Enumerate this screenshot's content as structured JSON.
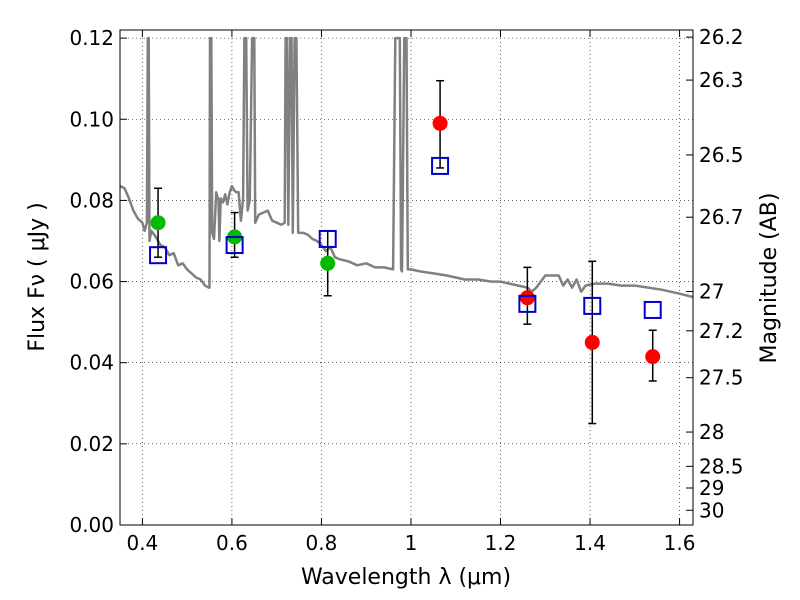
{
  "chart_data": {
    "type": "scatter",
    "xlabel": "Wavelength  λ (μm)",
    "ylabel": "Flux  Fν  ( μJy )",
    "y2label": "Magnitude (AB)",
    "xlim": [
      0.35,
      1.63
    ],
    "ylim": [
      0.0,
      0.122
    ],
    "grid": true,
    "x_ticks": [
      0.4,
      0.6,
      0.8,
      1.0,
      1.2,
      1.4,
      1.6
    ],
    "x_tick_labels": [
      "0.4",
      "0.6",
      "0.8",
      "1",
      "1.2",
      "1.4",
      "1.6"
    ],
    "y_ticks": [
      0.0,
      0.02,
      0.04,
      0.06,
      0.08,
      0.1,
      0.12
    ],
    "y_tick_labels": [
      "0.00",
      "0.02",
      "0.04",
      "0.06",
      "0.08",
      "0.10",
      "0.12"
    ],
    "mag_ticks": [
      26.2,
      26.3,
      26.5,
      26.7,
      27,
      27.2,
      27.5,
      28,
      28.5,
      29,
      30
    ],
    "mag_tick_labels": [
      "26.2",
      "26.3",
      "26.5",
      "26.7",
      "27",
      "27.2",
      "27.5",
      "28",
      "28.5",
      "29",
      "30"
    ],
    "colors": {
      "optical": "#00bb00",
      "infrared": "#ff0000",
      "model": "#0000cc",
      "sed": "#808080",
      "errorbar": "#000000"
    },
    "series": [
      {
        "marker": "circle",
        "color": "#00bb00",
        "points": [
          {
            "x": 0.435,
            "y": 0.0745,
            "ylo": 0.066,
            "yhi": 0.083
          },
          {
            "x": 0.606,
            "y": 0.071,
            "ylo": 0.066,
            "yhi": 0.077
          },
          {
            "x": 0.814,
            "y": 0.0645,
            "ylo": 0.0565,
            "yhi": 0.0725
          }
        ]
      },
      {
        "marker": "circle",
        "color": "#ff0000",
        "points": [
          {
            "x": 1.065,
            "y": 0.099,
            "ylo": 0.088,
            "yhi": 0.1095
          },
          {
            "x": 1.26,
            "y": 0.056,
            "ylo": 0.0495,
            "yhi": 0.0635
          },
          {
            "x": 1.405,
            "y": 0.045,
            "ylo": 0.025,
            "yhi": 0.065
          },
          {
            "x": 1.54,
            "y": 0.0415,
            "ylo": 0.0355,
            "yhi": 0.048
          }
        ]
      },
      {
        "marker": "square",
        "color": "#0000cc",
        "points": [
          {
            "x": 0.435,
            "y": 0.0665
          },
          {
            "x": 0.606,
            "y": 0.069
          },
          {
            "x": 0.814,
            "y": 0.0705
          },
          {
            "x": 1.065,
            "y": 0.0885
          },
          {
            "x": 1.26,
            "y": 0.0545
          },
          {
            "x": 1.405,
            "y": 0.054
          },
          {
            "x": 1.54,
            "y": 0.053
          }
        ]
      }
    ],
    "sed_line": {
      "color": "#808080",
      "points": [
        [
          0.35,
          0.0835
        ],
        [
          0.36,
          0.083
        ],
        [
          0.37,
          0.0805
        ],
        [
          0.38,
          0.0775
        ],
        [
          0.39,
          0.0755
        ],
        [
          0.4,
          0.0745
        ],
        [
          0.405,
          0.0725
        ],
        [
          0.41,
          0.0745
        ],
        [
          0.412,
          0.12
        ],
        [
          0.414,
          0.12
        ],
        [
          0.416,
          0.07
        ],
        [
          0.42,
          0.0725
        ],
        [
          0.43,
          0.071
        ],
        [
          0.44,
          0.069
        ],
        [
          0.45,
          0.0685
        ],
        [
          0.46,
          0.0665
        ],
        [
          0.47,
          0.067
        ],
        [
          0.48,
          0.064
        ],
        [
          0.49,
          0.0645
        ],
        [
          0.5,
          0.063
        ],
        [
          0.51,
          0.062
        ],
        [
          0.52,
          0.061
        ],
        [
          0.53,
          0.0605
        ],
        [
          0.54,
          0.059
        ],
        [
          0.548,
          0.0585
        ],
        [
          0.55,
          0.0585
        ],
        [
          0.551,
          0.12
        ],
        [
          0.554,
          0.12
        ],
        [
          0.556,
          0.072
        ],
        [
          0.56,
          0.0705
        ],
        [
          0.565,
          0.082
        ],
        [
          0.57,
          0.08
        ],
        [
          0.572,
          0.07
        ],
        [
          0.575,
          0.0805
        ],
        [
          0.58,
          0.0795
        ],
        [
          0.585,
          0.0815
        ],
        [
          0.59,
          0.079
        ],
        [
          0.595,
          0.082
        ],
        [
          0.6,
          0.0835
        ],
        [
          0.605,
          0.0825
        ],
        [
          0.61,
          0.082
        ],
        [
          0.615,
          0.082
        ],
        [
          0.62,
          0.075
        ],
        [
          0.625,
          0.0805
        ],
        [
          0.628,
          0.12
        ],
        [
          0.632,
          0.12
        ],
        [
          0.635,
          0.0775
        ],
        [
          0.64,
          0.08
        ],
        [
          0.645,
          0.12
        ],
        [
          0.65,
          0.12
        ],
        [
          0.652,
          0.0745
        ],
        [
          0.66,
          0.0765
        ],
        [
          0.67,
          0.077
        ],
        [
          0.68,
          0.0775
        ],
        [
          0.69,
          0.075
        ],
        [
          0.7,
          0.0745
        ],
        [
          0.71,
          0.074
        ],
        [
          0.718,
          0.0745
        ],
        [
          0.72,
          0.12
        ],
        [
          0.723,
          0.12
        ],
        [
          0.726,
          0.074
        ],
        [
          0.73,
          0.12
        ],
        [
          0.733,
          0.12
        ],
        [
          0.736,
          0.072
        ],
        [
          0.74,
          0.12
        ],
        [
          0.744,
          0.12
        ],
        [
          0.748,
          0.072
        ],
        [
          0.76,
          0.072
        ],
        [
          0.77,
          0.0715
        ],
        [
          0.78,
          0.0705
        ],
        [
          0.79,
          0.07
        ],
        [
          0.8,
          0.069
        ],
        [
          0.81,
          0.0675
        ],
        [
          0.82,
          0.0685
        ],
        [
          0.83,
          0.066
        ],
        [
          0.84,
          0.0655
        ],
        [
          0.86,
          0.065
        ],
        [
          0.88,
          0.064
        ],
        [
          0.9,
          0.0645
        ],
        [
          0.92,
          0.0635
        ],
        [
          0.94,
          0.0635
        ],
        [
          0.96,
          0.063
        ],
        [
          0.965,
          0.12
        ],
        [
          0.975,
          0.12
        ],
        [
          0.978,
          0.063
        ],
        [
          0.98,
          0.0625
        ],
        [
          0.985,
          0.12
        ],
        [
          0.99,
          0.12
        ],
        [
          0.993,
          0.063
        ],
        [
          1.0,
          0.063
        ],
        [
          1.02,
          0.0625
        ],
        [
          1.05,
          0.062
        ],
        [
          1.08,
          0.0615
        ],
        [
          1.1,
          0.061
        ],
        [
          1.12,
          0.0605
        ],
        [
          1.15,
          0.0605
        ],
        [
          1.18,
          0.06
        ],
        [
          1.2,
          0.06
        ],
        [
          1.22,
          0.0595
        ],
        [
          1.24,
          0.059
        ],
        [
          1.26,
          0.0585
        ],
        [
          1.27,
          0.0575
        ],
        [
          1.28,
          0.0585
        ],
        [
          1.3,
          0.0615
        ],
        [
          1.32,
          0.0615
        ],
        [
          1.33,
          0.0615
        ],
        [
          1.34,
          0.059
        ],
        [
          1.35,
          0.0605
        ],
        [
          1.36,
          0.0585
        ],
        [
          1.37,
          0.0605
        ],
        [
          1.38,
          0.0575
        ],
        [
          1.39,
          0.059
        ],
        [
          1.41,
          0.0595
        ],
        [
          1.44,
          0.0595
        ],
        [
          1.47,
          0.059
        ],
        [
          1.5,
          0.059
        ],
        [
          1.53,
          0.0585
        ],
        [
          1.56,
          0.058
        ],
        [
          1.6,
          0.057
        ],
        [
          1.63,
          0.0562
        ]
      ]
    }
  }
}
